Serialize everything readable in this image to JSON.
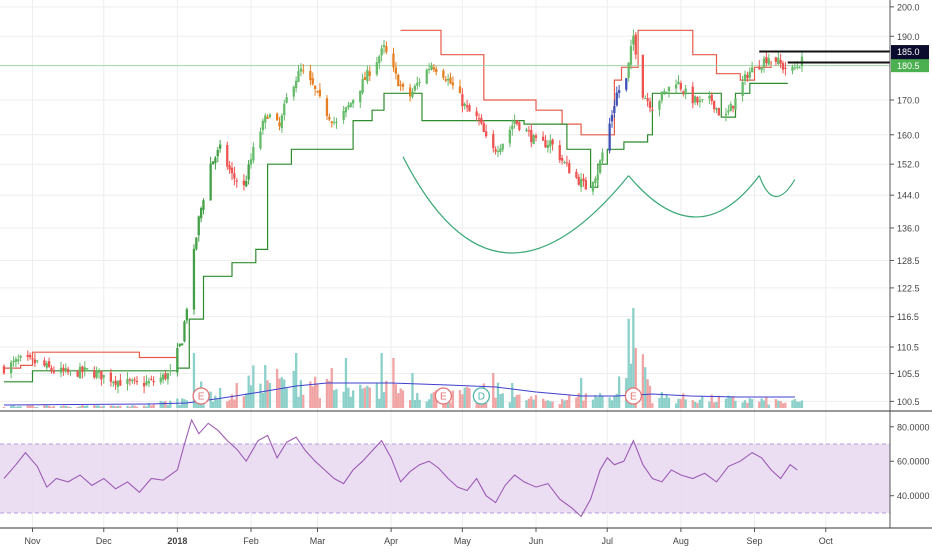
{
  "chart_data": [
    {
      "type": "candlestick",
      "panel": "price",
      "title": "",
      "y_scale": "log",
      "ylim": [
        99,
        201
      ],
      "y_ticks": [
        "200.0",
        "190.0",
        "170.0",
        "160.0",
        "152.0",
        "144.0",
        "136.0",
        "128.5",
        "122.5",
        "116.5",
        "110.5",
        "105.5",
        "100.5"
      ],
      "y_tick_values": [
        200.0,
        190.0,
        170.0,
        160.0,
        152.0,
        144.0,
        136.0,
        128.5,
        122.5,
        116.5,
        110.5,
        105.5,
        100.5
      ],
      "x_ticks": [
        "Nov",
        "Dec",
        "2018",
        "Feb",
        "Mar",
        "Apr",
        "May",
        "Jun",
        "Jul",
        "Aug",
        "Sep",
        "Oct"
      ],
      "x_tick_dates": [
        "2017-11-01",
        "2017-12-01",
        "2018-01-01",
        "2018-02-01",
        "2018-03-01",
        "2018-04-01",
        "2018-05-01",
        "2018-06-01",
        "2018-07-01",
        "2018-08-01",
        "2018-09-01",
        "2018-10-01"
      ],
      "price_path": [
        [
          "2017-10-20",
          106.5
        ],
        [
          "2017-10-27",
          108.0
        ],
        [
          "2017-11-03",
          107.5
        ],
        [
          "2017-11-10",
          106.0
        ],
        [
          "2017-11-17",
          105.5
        ],
        [
          "2017-11-24",
          106.0
        ],
        [
          "2017-12-01",
          105.0
        ],
        [
          "2017-12-08",
          104.0
        ],
        [
          "2017-12-15",
          103.5
        ],
        [
          "2017-12-22",
          104.0
        ],
        [
          "2017-12-29",
          105.5
        ],
        [
          "2018-01-03",
          112.0
        ],
        [
          "2018-01-06",
          122.0
        ],
        [
          "2018-01-10",
          138.0
        ],
        [
          "2018-01-15",
          152.0
        ],
        [
          "2018-01-19",
          156.0
        ],
        [
          "2018-01-24",
          149.0
        ],
        [
          "2018-01-29",
          146.0
        ],
        [
          "2018-02-03",
          158.0
        ],
        [
          "2018-02-08",
          166.0
        ],
        [
          "2018-02-13",
          162.0
        ],
        [
          "2018-02-17",
          173.0
        ],
        [
          "2018-02-22",
          179.0
        ],
        [
          "2018-02-27",
          174.0
        ],
        [
          "2018-03-04",
          167.0
        ],
        [
          "2018-03-09",
          163.0
        ],
        [
          "2018-03-14",
          168.0
        ],
        [
          "2018-03-19",
          174.0
        ],
        [
          "2018-03-24",
          180.0
        ],
        [
          "2018-03-29",
          186.0
        ],
        [
          "2018-04-03",
          177.0
        ],
        [
          "2018-04-08",
          170.0
        ],
        [
          "2018-04-13",
          176.0
        ],
        [
          "2018-04-18",
          181.0
        ],
        [
          "2018-04-23",
          178.0
        ],
        [
          "2018-04-28",
          173.0
        ],
        [
          "2018-05-03",
          167.0
        ],
        [
          "2018-05-08",
          164.0
        ],
        [
          "2018-05-13",
          155.0
        ],
        [
          "2018-05-18",
          158.0
        ],
        [
          "2018-05-23",
          164.0
        ],
        [
          "2018-05-28",
          161.0
        ],
        [
          "2018-06-02",
          157.0
        ],
        [
          "2018-06-07",
          158.0
        ],
        [
          "2018-06-12",
          153.0
        ],
        [
          "2018-06-17",
          149.0
        ],
        [
          "2018-06-22",
          146.0
        ],
        [
          "2018-06-27",
          150.0
        ],
        [
          "2018-07-01",
          160.0
        ],
        [
          "2018-07-05",
          172.0
        ],
        [
          "2018-07-09",
          176.0
        ],
        [
          "2018-07-12",
          190.0
        ],
        [
          "2018-07-16",
          172.0
        ],
        [
          "2018-07-20",
          168.0
        ],
        [
          "2018-07-25",
          172.0
        ],
        [
          "2018-07-30",
          176.0
        ],
        [
          "2018-08-04",
          171.0
        ],
        [
          "2018-08-09",
          169.0
        ],
        [
          "2018-08-14",
          170.0
        ],
        [
          "2018-08-19",
          164.0
        ],
        [
          "2018-08-24",
          170.0
        ],
        [
          "2018-08-29",
          178.0
        ],
        [
          "2018-09-03",
          181.0
        ],
        [
          "2018-09-08",
          184.0
        ],
        [
          "2018-09-13",
          180.0
        ],
        [
          "2018-09-17",
          179.0
        ],
        [
          "2018-09-21",
          182.0
        ]
      ],
      "upper_band_path": [
        [
          "2017-10-20",
          106.5
        ],
        [
          "2017-10-27",
          107.0
        ],
        [
          "2017-11-01",
          109.5
        ],
        [
          "2017-12-12",
          109.5
        ],
        [
          "2017-12-16",
          108.5
        ],
        [
          "2018-01-01",
          108.5
        ],
        [
          "2018-01-01",
          108.5
        ]
      ],
      "upper_band_path_2": [
        [
          "2018-04-05",
          192.0
        ],
        [
          "2018-04-20",
          192.0
        ],
        [
          "2018-04-22",
          184.0
        ],
        [
          "2018-05-08",
          184.0
        ],
        [
          "2018-05-10",
          170.0
        ],
        [
          "2018-05-27",
          170.0
        ],
        [
          "2018-06-01",
          167.0
        ],
        [
          "2018-06-12",
          163.0
        ],
        [
          "2018-06-20",
          160.0
        ],
        [
          "2018-06-27",
          160.0
        ],
        [
          "2018-07-04",
          176.0
        ],
        [
          "2018-07-07",
          180.0
        ],
        [
          "2018-07-12",
          180.0
        ],
        [
          "2018-07-14",
          192.0
        ],
        [
          "2018-07-26",
          192.0
        ],
        [
          "2018-08-06",
          184.0
        ],
        [
          "2018-08-16",
          178.0
        ],
        [
          "2018-08-26",
          176.0
        ],
        [
          "2018-09-01",
          180.0
        ],
        [
          "2018-09-08",
          182.0
        ]
      ],
      "lower_band_path": [
        [
          "2017-10-20",
          104.0
        ],
        [
          "2017-11-01",
          106.0
        ],
        [
          "2017-12-18",
          106.0
        ],
        [
          "2018-01-01",
          106.5
        ],
        [
          "2018-01-06",
          116.0
        ],
        [
          "2018-01-12",
          125.0
        ],
        [
          "2018-01-24",
          128.0
        ],
        [
          "2018-02-03",
          131.0
        ],
        [
          "2018-02-08",
          152.0
        ],
        [
          "2018-02-18",
          156.0
        ],
        [
          "2018-03-03",
          156.0
        ],
        [
          "2018-03-13",
          156.0
        ],
        [
          "2018-03-16",
          164.0
        ],
        [
          "2018-03-24",
          167.0
        ],
        [
          "2018-03-29",
          172.0
        ],
        [
          "2018-04-11",
          172.0
        ],
        [
          "2018-04-14",
          164.0
        ],
        [
          "2018-05-27",
          164.0
        ],
        [
          "2018-05-27",
          163.0
        ],
        [
          "2018-06-14",
          156.0
        ],
        [
          "2018-06-24",
          146.0
        ],
        [
          "2018-06-27",
          152.0
        ],
        [
          "2018-07-01",
          156.0
        ],
        [
          "2018-07-08",
          158.0
        ],
        [
          "2018-07-18",
          160.0
        ],
        [
          "2018-07-20",
          172.0
        ],
        [
          "2018-08-13",
          172.0
        ],
        [
          "2018-08-18",
          165.0
        ],
        [
          "2018-08-24",
          172.0
        ],
        [
          "2018-08-30",
          175.0
        ],
        [
          "2018-09-15",
          175.0
        ]
      ],
      "cup_arcs": [
        {
          "start": [
            "2018-04-06",
            154.0
          ],
          "control": [
            "2018-05-15",
            112.0
          ],
          "end": [
            "2018-07-10",
            149.0
          ]
        },
        {
          "start": [
            "2018-07-10",
            149.0
          ],
          "control": [
            "2018-08-08",
            129.0
          ],
          "end": [
            "2018-09-03",
            149.0
          ]
        },
        {
          "start": [
            "2018-09-03",
            149.0
          ],
          "control": [
            "2018-09-09",
            139.0
          ],
          "end": [
            "2018-09-18",
            148.0
          ]
        }
      ],
      "horizontal_lines": [
        {
          "value": 185.0,
          "from": "2018-09-03",
          "label": "185.0"
        },
        {
          "value": 181.5,
          "from": "2018-09-15",
          "label": "181.5"
        }
      ],
      "price_line": 180.5,
      "last_price_label": "180.5",
      "grid": true
    },
    {
      "type": "bar",
      "panel": "volume",
      "y_scale": "linear",
      "ylim": [
        0,
        100
      ],
      "volume_profile": [
        [
          "2017-10-20",
          2
        ],
        [
          "2017-11-15",
          2
        ],
        [
          "2017-12-15",
          2
        ],
        [
          "2018-01-03",
          8
        ],
        [
          "2018-01-08",
          20
        ],
        [
          "2018-01-15",
          15
        ],
        [
          "2018-01-25",
          12
        ],
        [
          "2018-02-05",
          35
        ],
        [
          "2018-02-15",
          25
        ],
        [
          "2018-02-25",
          30
        ],
        [
          "2018-03-05",
          20
        ],
        [
          "2018-03-15",
          15
        ],
        [
          "2018-03-25",
          18
        ],
        [
          "2018-04-05",
          20
        ],
        [
          "2018-04-15",
          15
        ],
        [
          "2018-04-25",
          12
        ],
        [
          "2018-05-05",
          15
        ],
        [
          "2018-05-15",
          18
        ],
        [
          "2018-05-25",
          10
        ],
        [
          "2018-06-05",
          8
        ],
        [
          "2018-06-15",
          10
        ],
        [
          "2018-06-25",
          12
        ],
        [
          "2018-07-05",
          15
        ],
        [
          "2018-07-12",
          90
        ],
        [
          "2018-07-20",
          12
        ],
        [
          "2018-08-01",
          10
        ],
        [
          "2018-08-15",
          9
        ],
        [
          "2018-09-01",
          8
        ],
        [
          "2018-09-15",
          6
        ]
      ],
      "volume_spikes": [
        [
          "2018-01-08",
          55
        ],
        [
          "2018-01-26",
          25
        ],
        [
          "2018-02-10",
          70
        ],
        [
          "2018-02-20",
          55
        ],
        [
          "2018-02-24",
          80
        ],
        [
          "2018-03-07",
          40
        ],
        [
          "2018-03-13",
          50
        ],
        [
          "2018-03-28",
          55
        ],
        [
          "2018-04-02",
          50
        ],
        [
          "2018-04-10",
          35
        ],
        [
          "2018-04-22",
          30
        ],
        [
          "2018-05-14",
          35
        ],
        [
          "2018-05-22",
          25
        ],
        [
          "2018-06-20",
          30
        ],
        [
          "2018-06-30",
          35
        ],
        [
          "2018-07-12",
          100
        ],
        [
          "2018-07-13",
          60
        ]
      ],
      "volume_ma_path": [
        [
          "2017-10-20",
          3
        ],
        [
          "2017-12-20",
          4
        ],
        [
          "2018-01-05",
          5
        ],
        [
          "2018-01-20",
          10
        ],
        [
          "2018-02-05",
          16
        ],
        [
          "2018-02-20",
          22
        ],
        [
          "2018-03-05",
          25
        ],
        [
          "2018-04-01",
          25
        ],
        [
          "2018-04-25",
          23
        ],
        [
          "2018-05-15",
          21
        ],
        [
          "2018-06-01",
          16
        ],
        [
          "2018-06-20",
          12
        ],
        [
          "2018-07-05",
          12
        ],
        [
          "2018-07-20",
          14
        ],
        [
          "2018-08-05",
          12
        ],
        [
          "2018-08-25",
          11
        ],
        [
          "2018-09-10",
          11
        ],
        [
          "2018-09-18",
          11
        ]
      ],
      "event_markers": [
        {
          "date": "2018-01-11",
          "label": "E",
          "color": "#e57373"
        },
        {
          "date": "2018-04-23",
          "label": "E",
          "color": "#e57373"
        },
        {
          "date": "2018-05-09",
          "label": "D",
          "color": "#4db6ac"
        },
        {
          "date": "2018-07-12",
          "label": "E",
          "color": "#e57373"
        }
      ]
    },
    {
      "type": "line",
      "panel": "rsi",
      "ylim": [
        23,
        88
      ],
      "y_ticks": [
        "80.0000",
        "60.0000",
        "40.0000"
      ],
      "y_tick_values": [
        80,
        60,
        40
      ],
      "band": [
        30,
        70
      ],
      "rsi_path": [
        [
          "2017-10-20",
          50
        ],
        [
          "2017-10-25",
          58
        ],
        [
          "2017-10-29",
          65
        ],
        [
          "2017-11-03",
          57
        ],
        [
          "2017-11-07",
          45
        ],
        [
          "2017-11-11",
          50
        ],
        [
          "2017-11-16",
          48
        ],
        [
          "2017-11-21",
          52
        ],
        [
          "2017-11-26",
          46
        ],
        [
          "2017-12-01",
          50
        ],
        [
          "2017-12-06",
          44
        ],
        [
          "2017-12-11",
          48
        ],
        [
          "2017-12-16",
          42
        ],
        [
          "2017-12-21",
          50
        ],
        [
          "2017-12-26",
          49
        ],
        [
          "2018-01-01",
          55
        ],
        [
          "2018-01-04",
          70
        ],
        [
          "2018-01-07",
          84
        ],
        [
          "2018-01-10",
          76
        ],
        [
          "2018-01-14",
          82
        ],
        [
          "2018-01-18",
          78
        ],
        [
          "2018-01-22",
          72
        ],
        [
          "2018-01-26",
          67
        ],
        [
          "2018-01-30",
          60
        ],
        [
          "2018-02-04",
          72
        ],
        [
          "2018-02-08",
          75
        ],
        [
          "2018-02-12",
          62
        ],
        [
          "2018-02-16",
          71
        ],
        [
          "2018-02-20",
          74
        ],
        [
          "2018-02-24",
          66
        ],
        [
          "2018-02-28",
          60
        ],
        [
          "2018-03-04",
          55
        ],
        [
          "2018-03-08",
          50
        ],
        [
          "2018-03-12",
          47
        ],
        [
          "2018-03-16",
          55
        ],
        [
          "2018-03-20",
          60
        ],
        [
          "2018-03-24",
          66
        ],
        [
          "2018-03-28",
          72
        ],
        [
          "2018-04-01",
          62
        ],
        [
          "2018-04-05",
          48
        ],
        [
          "2018-04-09",
          54
        ],
        [
          "2018-04-13",
          58
        ],
        [
          "2018-04-17",
          60
        ],
        [
          "2018-04-21",
          56
        ],
        [
          "2018-04-25",
          50
        ],
        [
          "2018-04-29",
          45
        ],
        [
          "2018-05-03",
          43
        ],
        [
          "2018-05-07",
          50
        ],
        [
          "2018-05-11",
          40
        ],
        [
          "2018-05-15",
          36
        ],
        [
          "2018-05-19",
          46
        ],
        [
          "2018-05-23",
          52
        ],
        [
          "2018-05-27",
          48
        ],
        [
          "2018-06-01",
          45
        ],
        [
          "2018-06-06",
          47
        ],
        [
          "2018-06-11",
          38
        ],
        [
          "2018-06-16",
          33
        ],
        [
          "2018-06-20",
          28
        ],
        [
          "2018-06-24",
          38
        ],
        [
          "2018-06-28",
          55
        ],
        [
          "2018-07-01",
          62
        ],
        [
          "2018-07-04",
          58
        ],
        [
          "2018-07-08",
          60
        ],
        [
          "2018-07-12",
          72
        ],
        [
          "2018-07-16",
          58
        ],
        [
          "2018-07-20",
          50
        ],
        [
          "2018-07-24",
          48
        ],
        [
          "2018-07-28",
          55
        ],
        [
          "2018-08-01",
          52
        ],
        [
          "2018-08-06",
          50
        ],
        [
          "2018-08-11",
          53
        ],
        [
          "2018-08-16",
          48
        ],
        [
          "2018-08-21",
          57
        ],
        [
          "2018-08-26",
          60
        ],
        [
          "2018-08-31",
          65
        ],
        [
          "2018-09-04",
          62
        ],
        [
          "2018-09-08",
          55
        ],
        [
          "2018-09-12",
          50
        ],
        [
          "2018-09-16",
          58
        ],
        [
          "2018-09-19",
          55
        ]
      ]
    }
  ],
  "colors": {
    "up": "#66bb6a",
    "down": "#ef5350",
    "up_alt": "#43a047",
    "down_alt": "#e67e22",
    "blue_candle": "#3f51b5",
    "upper_band": "#e65a4a",
    "lower_band": "#2e8b2e",
    "cup": "#3aa876",
    "volume_up": "#80cbc4",
    "volume_down": "#ef9a9a",
    "volume_ma": "#3f3fcf",
    "rsi_line": "#9c5bb5",
    "rsi_band": "#e8d8f0",
    "label_dark": "#0b0b2e",
    "label_green": "#4caf50"
  }
}
